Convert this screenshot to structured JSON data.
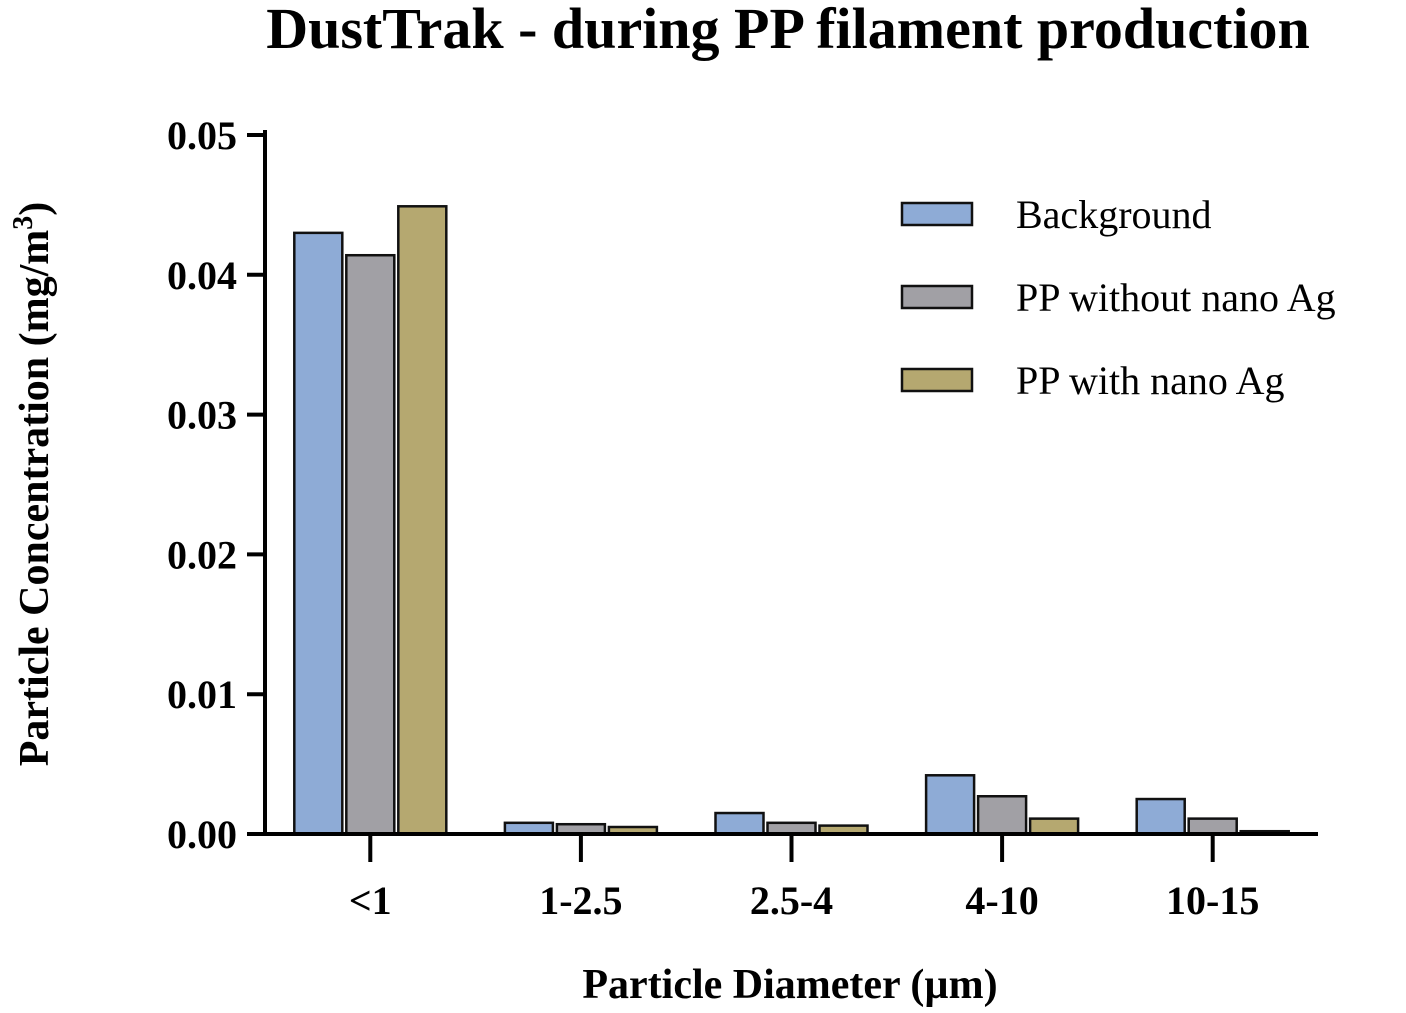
{
  "chart_data": {
    "type": "bar",
    "title": "DustTrak - during PP filament production",
    "xlabel": "Particle Diameter (µm)",
    "ylabel_main": "Particle Concentration (mg/m",
    "ylabel_sup": "3",
    "ylabel_close": ")",
    "categories": [
      "<1",
      "1-2.5",
      "2.5-4",
      "4-10",
      "10-15"
    ],
    "ylim": [
      0,
      0.05
    ],
    "yticks": [
      "0.00",
      "0.01",
      "0.02",
      "0.03",
      "0.04",
      "0.05"
    ],
    "ytick_values": [
      0,
      0.01,
      0.02,
      0.03,
      0.04,
      0.05
    ],
    "legend_position": "top-right",
    "grid": false,
    "series": [
      {
        "name": "Background",
        "color": "#8eabd6",
        "values": [
          0.043,
          0.0008,
          0.0015,
          0.0042,
          0.0025
        ]
      },
      {
        "name": "PP without nano Ag",
        "color": "#a1a0a5",
        "values": [
          0.0414,
          0.0007,
          0.0008,
          0.0027,
          0.0011
        ]
      },
      {
        "name": "PP with nano Ag",
        "color": "#b5a870",
        "values": [
          0.0449,
          0.0005,
          0.0006,
          0.0011,
          0.0002
        ]
      }
    ]
  }
}
